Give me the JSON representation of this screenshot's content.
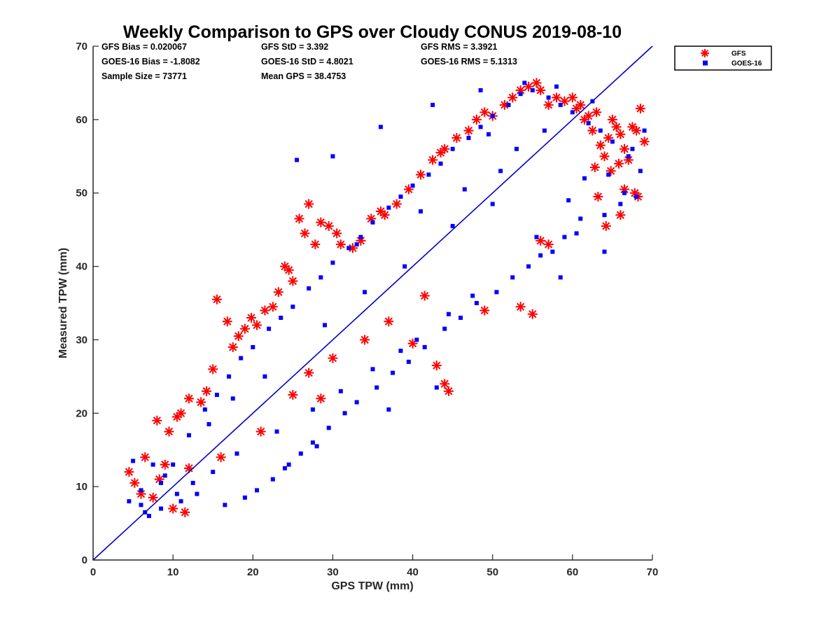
{
  "chart_data": {
    "type": "scatter",
    "title": "Weekly Comparison to GPS over Cloudy CONUS 2019-08-10",
    "xlabel": "GPS TPW (mm)",
    "ylabel": "Measured TPW (mm)",
    "xlim": [
      0,
      70
    ],
    "ylim": [
      0,
      70
    ],
    "xticks": [
      "0",
      "10",
      "20",
      "30",
      "40",
      "50",
      "60",
      "70"
    ],
    "yticks": [
      "0",
      "10",
      "20",
      "30",
      "40",
      "50",
      "60",
      "70"
    ],
    "grid": false,
    "legend_position": "outside top-right",
    "reference_line": {
      "x": [
        0,
        70
      ],
      "y": [
        0,
        70
      ],
      "color": "#0000cc"
    },
    "stats": [
      [
        "GFS Bias = 0.020067",
        "GFS StD = 3.392",
        "GFS RMS = 3.3921"
      ],
      [
        "GOES-16 Bias = -1.8082",
        "GOES-16 StD = 4.8021",
        "GOES-16 RMS = 5.1313"
      ],
      [
        "Sample Size = 73771",
        "Mean GPS = 38.4753",
        ""
      ]
    ],
    "series": [
      {
        "name": "GFS",
        "marker": "asterisk",
        "color": "#ff0000",
        "x": [
          4.5,
          5.2,
          6.0,
          7.5,
          8.3,
          9.0,
          9.5,
          8.0,
          10.5,
          11.0,
          12.0,
          13.5,
          14.2,
          15.0,
          15.5,
          16.8,
          17.5,
          18.2,
          19.0,
          19.8,
          20.5,
          21.5,
          22.5,
          23.2,
          24.0,
          24.5,
          25.0,
          25.8,
          26.5,
          27.0,
          27.8,
          28.5,
          29.5,
          30.5,
          31.0,
          32.5,
          33.5,
          34.8,
          36.0,
          36.5,
          38.0,
          39.5,
          41.0,
          42.5,
          43.5,
          44.0,
          45.5,
          47.0,
          48.0,
          49.0,
          50.0,
          51.5,
          52.5,
          53.5,
          54.5,
          55.5,
          56.0,
          57.0,
          58.0,
          59.0,
          60.0,
          60.5,
          61.0,
          61.5,
          62.0,
          62.5,
          63.0,
          63.5,
          64.0,
          64.5,
          65.0,
          65.5,
          66.0,
          66.5,
          67.0,
          67.5,
          68.0,
          68.5,
          69.0,
          66.5,
          67.8,
          64.8,
          63.2,
          65.8,
          68.2,
          62.8,
          64.2,
          66.0,
          53.5,
          56.0,
          57.0,
          49.0,
          44.0,
          43.0,
          40.0,
          37.0,
          41.5,
          55.0,
          44.5,
          34.0,
          30.0,
          27.0,
          28.5,
          25.0,
          21.0,
          16.0,
          12.0,
          6.5,
          10.0,
          11.5
        ],
        "y": [
          12.0,
          10.5,
          9.0,
          8.5,
          11.0,
          13.0,
          17.5,
          19.0,
          19.5,
          20.0,
          22.0,
          21.5,
          23.0,
          26.0,
          35.5,
          32.5,
          29.0,
          30.5,
          31.5,
          33.0,
          32.0,
          34.0,
          34.5,
          36.5,
          40.0,
          39.5,
          38.0,
          46.5,
          44.5,
          48.5,
          43.0,
          46.0,
          45.5,
          44.5,
          43.0,
          42.5,
          43.5,
          46.5,
          47.5,
          47.0,
          48.5,
          50.5,
          52.5,
          54.5,
          55.5,
          56.0,
          57.5,
          58.5,
          60.0,
          61.0,
          60.5,
          62.0,
          63.0,
          64.0,
          64.5,
          65.0,
          64.0,
          62.0,
          63.0,
          62.5,
          63.0,
          61.5,
          62.0,
          60.0,
          60.5,
          58.5,
          61.0,
          56.5,
          55.0,
          57.5,
          60.0,
          59.0,
          58.0,
          56.0,
          54.5,
          59.0,
          58.5,
          61.5,
          57.0,
          50.5,
          50.0,
          53.0,
          49.5,
          54.0,
          49.5,
          53.5,
          45.5,
          47.0,
          34.5,
          43.5,
          43.0,
          34.0,
          24.0,
          26.5,
          29.5,
          32.5,
          36.0,
          33.5,
          23.0,
          30.0,
          27.5,
          25.5,
          22.0,
          22.5,
          17.5,
          14.0,
          12.5,
          14.0,
          7.0,
          6.5
        ],
        "size": 7
      },
      {
        "name": "GOES-16",
        "marker": "square",
        "color": "#0000ff",
        "x": [
          4.5,
          5.0,
          6.0,
          7.0,
          8.5,
          10.0,
          12.0,
          14.0,
          15.5,
          17.0,
          18.5,
          20.0,
          22.0,
          23.5,
          25.0,
          27.0,
          28.5,
          30.0,
          32.0,
          33.5,
          35.0,
          37.0,
          38.5,
          40.0,
          42.0,
          43.5,
          45.0,
          47.0,
          48.5,
          50.0,
          52.0,
          53.5,
          55.0,
          57.0,
          58.5,
          60.0,
          62.0,
          63.5,
          65.0,
          67.0,
          68.5,
          69.0,
          66.0,
          64.0,
          61.0,
          59.0,
          56.0,
          54.5,
          52.5,
          50.5,
          48.0,
          46.0,
          44.0,
          41.5,
          39.5,
          37.5,
          35.5,
          33.0,
          31.5,
          29.5,
          27.5,
          26.0,
          24.0,
          22.5,
          20.5,
          19.0,
          16.5,
          13.0,
          11.0,
          9.0,
          7.5,
          6.0,
          30.0,
          36.0,
          25.5,
          42.5,
          48.5,
          54.0,
          58.0,
          62.5,
          67.5,
          64.5,
          66.5,
          68.0,
          55.5,
          57.5,
          60.5,
          47.5,
          44.5,
          40.5,
          38.5,
          35.0,
          31.0,
          27.5,
          23.0,
          18.0,
          15.0,
          12.5,
          10.5,
          8.5,
          6.5,
          33.0,
          41.0,
          46.5,
          51.0,
          53.0,
          49.5,
          45.0,
          39.0,
          34.0,
          29.0,
          21.5,
          17.5,
          14.5,
          58.5,
          64.0,
          43.0,
          37.0,
          28.0,
          24.5,
          50.0,
          61.5,
          56.5,
          59.5
        ],
        "y": [
          8.0,
          13.5,
          7.5,
          6.0,
          10.5,
          13.0,
          17.0,
          20.5,
          22.5,
          25.0,
          27.5,
          29.0,
          31.5,
          33.0,
          34.5,
          37.0,
          38.5,
          40.5,
          42.5,
          44.0,
          46.0,
          48.0,
          49.5,
          51.0,
          52.5,
          54.0,
          56.0,
          57.5,
          59.0,
          60.5,
          62.0,
          63.5,
          64.0,
          63.0,
          62.0,
          61.0,
          59.5,
          58.5,
          57.0,
          55.0,
          53.0,
          58.5,
          48.5,
          47.0,
          46.5,
          44.0,
          41.5,
          40.0,
          38.5,
          36.5,
          35.0,
          33.0,
          31.5,
          29.0,
          27.0,
          25.5,
          23.5,
          21.5,
          20.0,
          18.0,
          16.0,
          14.5,
          12.5,
          11.0,
          9.5,
          8.5,
          7.5,
          9.0,
          8.0,
          11.5,
          13.0,
          9.5,
          55.0,
          59.0,
          54.5,
          62.0,
          64.0,
          65.0,
          64.5,
          62.5,
          56.0,
          52.5,
          50.0,
          49.5,
          44.0,
          42.0,
          44.5,
          36.0,
          33.5,
          30.0,
          28.5,
          26.0,
          23.0,
          20.5,
          17.5,
          14.5,
          12.0,
          10.5,
          9.0,
          7.0,
          6.5,
          43.0,
          47.5,
          50.5,
          53.0,
          56.0,
          58.0,
          45.5,
          40.0,
          36.5,
          32.0,
          25.0,
          22.0,
          18.5,
          38.5,
          42.0,
          23.5,
          20.5,
          15.5,
          13.0,
          48.5,
          52.0,
          58.5,
          49.0
        ],
        "size": 6
      }
    ]
  }
}
